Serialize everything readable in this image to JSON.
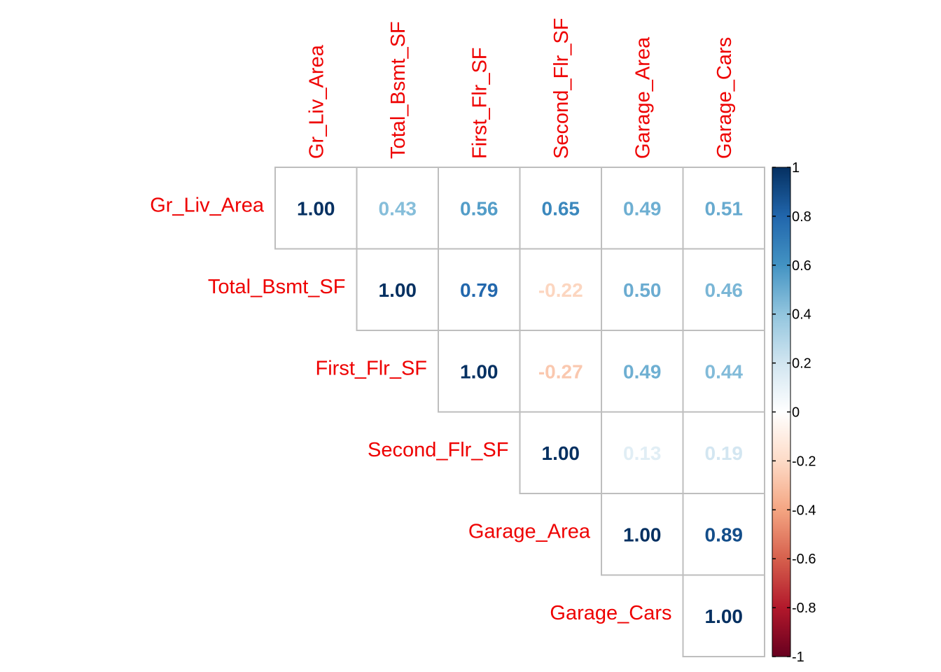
{
  "chart_data": {
    "type": "heatmap",
    "variables": [
      "Gr_Liv_Area",
      "Total_Bsmt_SF",
      "First_Flr_SF",
      "Second_Flr_SF",
      "Garage_Area",
      "Garage_Cars"
    ],
    "matrix": [
      [
        1.0,
        0.43,
        0.56,
        0.65,
        0.49,
        0.51
      ],
      [
        0.43,
        1.0,
        0.79,
        -0.22,
        0.5,
        0.46
      ],
      [
        0.56,
        0.79,
        1.0,
        -0.27,
        0.49,
        0.44
      ],
      [
        0.65,
        -0.22,
        -0.27,
        1.0,
        0.13,
        0.19
      ],
      [
        0.49,
        0.5,
        0.49,
        0.13,
        1.0,
        0.89
      ],
      [
        0.51,
        0.46,
        0.44,
        0.19,
        0.89,
        1.0
      ]
    ],
    "display": "upper-triangle",
    "value_format": "2-decimals",
    "color_scale": {
      "range": [
        -1,
        1
      ],
      "ticks": [
        "-1",
        "-0.8",
        "-0.6",
        "-0.4",
        "-0.2",
        "0",
        "0.2",
        "0.4",
        "0.6",
        "0.8",
        "1"
      ],
      "colors": [
        "#67001F",
        "#B2182B",
        "#D6604D",
        "#F4A582",
        "#FDDBC7",
        "#FFFFFF",
        "#D1E5F0",
        "#92C5DE",
        "#4393C3",
        "#2166AC",
        "#053061"
      ]
    },
    "label_color": "#EE0000",
    "grid_color": "#BEBEBE",
    "legend_position": "right"
  }
}
